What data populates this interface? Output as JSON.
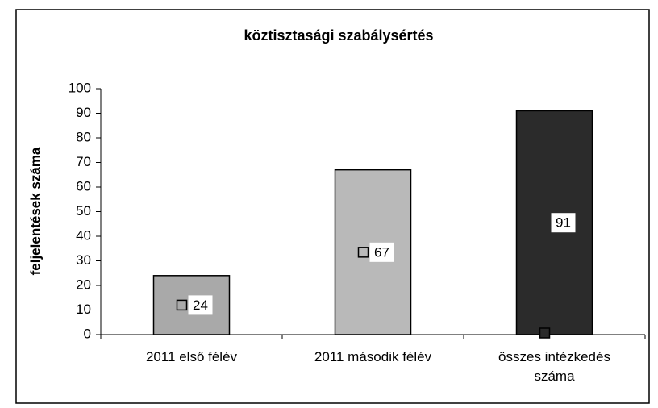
{
  "chart_data": {
    "type": "bar",
    "title": "köztisztasági szabálysértés",
    "ylabel": "feljelentések száma",
    "categories": [
      "2011 első félév",
      "2011 második félév",
      "összes intézkedés száma"
    ],
    "values": [
      24,
      67,
      91
    ],
    "colors": [
      "#a9a9a9",
      "#b9b9b9",
      "#2b2b2b"
    ],
    "ylim": [
      0,
      100
    ],
    "yticks": [
      0,
      10,
      20,
      30,
      40,
      50,
      60,
      70,
      80,
      90,
      100
    ],
    "grid": false
  }
}
